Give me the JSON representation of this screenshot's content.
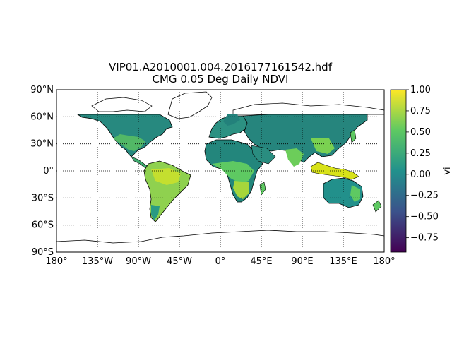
{
  "figure": {
    "title_line1": "VIP01.A2010001.004.2016177161542.hdf",
    "title_line2": "CMG 0.05 Deg Daily NDVI"
  },
  "map": {
    "projection": "cylindrical",
    "lon_range": [
      -180,
      180
    ],
    "lat_range": [
      -90,
      90
    ],
    "gridlines": "dotted",
    "parallels": [
      -90,
      -60,
      -30,
      0,
      30,
      60,
      90
    ],
    "meridians": [
      -180,
      -135,
      -90,
      -45,
      0,
      45,
      90,
      135,
      180
    ],
    "lat_labels": [
      "90°S",
      "60°S",
      "30°S",
      "0°",
      "30°N",
      "60°N",
      "90°N"
    ],
    "lon_labels": [
      "180°",
      "135°W",
      "90°W",
      "45°W",
      "0°",
      "45°E",
      "90°E",
      "135°E",
      "180°"
    ],
    "data_coverage_lat": [
      -60,
      60
    ],
    "coastlines": "black"
  },
  "colorbar": {
    "label": "vi",
    "colormap": "viridis",
    "vmin": -0.92,
    "vmax": 1.0,
    "ticks": [
      "1.00",
      "0.75",
      "0.50",
      "0.25",
      "0.00",
      "−0.25",
      "−0.50",
      "−0.75"
    ],
    "tick_values": [
      1.0,
      0.75,
      0.5,
      0.25,
      0.0,
      -0.25,
      -0.5,
      -0.75
    ],
    "colors": [
      "#440154",
      "#3b528b",
      "#21918c",
      "#5ec962",
      "#fde725"
    ]
  }
}
